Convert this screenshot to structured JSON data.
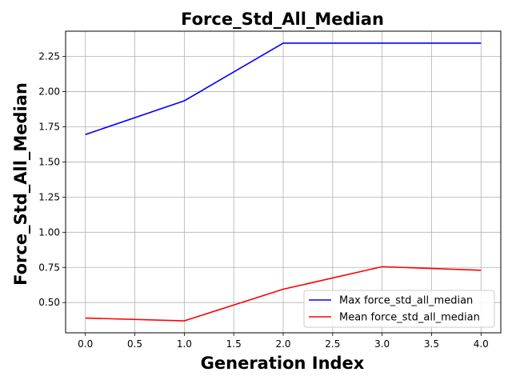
{
  "chart_data": {
    "type": "line",
    "title": "Force_Std_All_Median",
    "xlabel": "Generation Index",
    "ylabel": "Force_Std_All_Median",
    "x": [
      0,
      1,
      2,
      3,
      4
    ],
    "xlim": [
      -0.2,
      4.2
    ],
    "ylim": [
      0.285,
      2.43
    ],
    "xticks": [
      0.0,
      0.5,
      1.0,
      1.5,
      2.0,
      2.5,
      3.0,
      3.5,
      4.0
    ],
    "xtick_labels": [
      "0.0",
      "0.5",
      "1.0",
      "1.5",
      "2.0",
      "2.5",
      "3.0",
      "3.5",
      "4.0"
    ],
    "yticks": [
      0.5,
      0.75,
      1.0,
      1.25,
      1.5,
      1.75,
      2.0,
      2.25
    ],
    "ytick_labels": [
      "0.50",
      "0.75",
      "1.00",
      "1.25",
      "1.50",
      "1.75",
      "2.00",
      "2.25"
    ],
    "grid": true,
    "legend_position": "lower-right",
    "series": [
      {
        "name": "Max force_std_all_median",
        "color": "#0000ff",
        "values": [
          1.695,
          1.935,
          2.345,
          2.345,
          2.345
        ]
      },
      {
        "name": "Mean force_std_all_median",
        "color": "#ff0000",
        "values": [
          0.39,
          0.37,
          0.595,
          0.755,
          0.73
        ]
      }
    ]
  }
}
